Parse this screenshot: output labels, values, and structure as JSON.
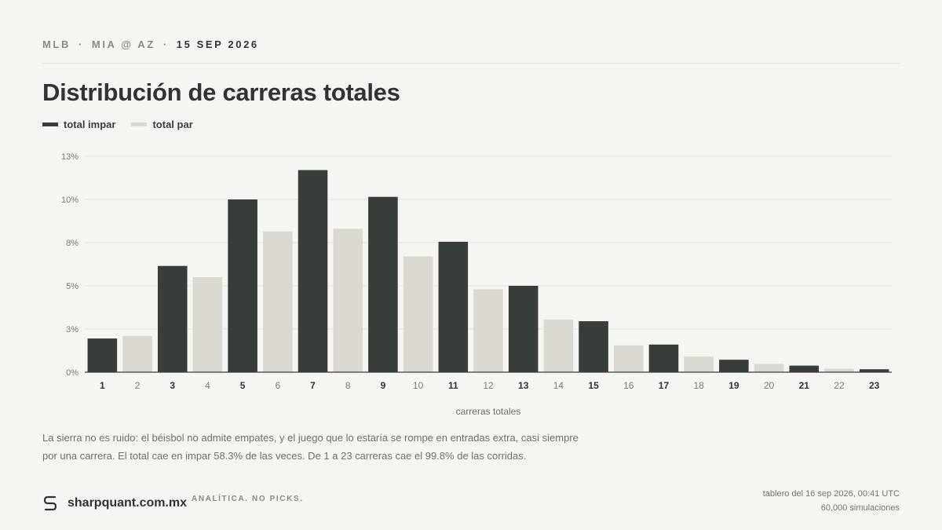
{
  "header": {
    "league": "MLB",
    "matchup": "MIA @ AZ",
    "date": "15 SEP 2026"
  },
  "title": "Distribución de carreras totales",
  "legend": {
    "odd_label": "total impar",
    "even_label": "total par"
  },
  "colors": {
    "odd": "#363d3b",
    "even": "#dbd8d2",
    "grid": "#e6e4df",
    "axis": "#3a3f3e"
  },
  "chart_data": {
    "type": "bar",
    "xlabel": "carreras totales",
    "ylabel": "",
    "ylim": [
      0,
      12.5
    ],
    "yticks": [
      0,
      2.5,
      5,
      7.5,
      10,
      12.5
    ],
    "ytick_labels": [
      "0%",
      "3%",
      "5%",
      "8%",
      "10%",
      "13%"
    ],
    "grid": true,
    "categories": [
      "1",
      "2",
      "3",
      "4",
      "5",
      "6",
      "7",
      "8",
      "9",
      "10",
      "11",
      "12",
      "13",
      "14",
      "15",
      "16",
      "17",
      "18",
      "19",
      "20",
      "21",
      "22",
      "23"
    ],
    "values": [
      1.95,
      2.1,
      6.15,
      5.5,
      10.0,
      8.15,
      11.7,
      8.3,
      10.15,
      6.7,
      7.55,
      4.8,
      5.0,
      3.05,
      2.95,
      1.55,
      1.6,
      0.9,
      0.72,
      0.48,
      0.38,
      0.2,
      0.17
    ],
    "parity": [
      "odd",
      "even",
      "odd",
      "even",
      "odd",
      "even",
      "odd",
      "even",
      "odd",
      "even",
      "odd",
      "even",
      "odd",
      "even",
      "odd",
      "even",
      "odd",
      "even",
      "odd",
      "even",
      "odd",
      "even",
      "odd"
    ]
  },
  "caption": {
    "line1": "La sierra no es ruido: el béisbol no admite empates, y el juego que lo estaría se rompe en entradas extra, casi siempre",
    "line2": "por una carrera. El total cae en impar 58.3% de las veces. De 1 a 23 carreras cae el 99.8% de las corridas."
  },
  "footer": {
    "brand": "sharpquant.com.mx",
    "tagline": "ANALÍTICA. NO PICKS.",
    "updated": "tablero del 16 sep 2026, 00:41 UTC",
    "simulations": "60,000 simulaciones"
  }
}
